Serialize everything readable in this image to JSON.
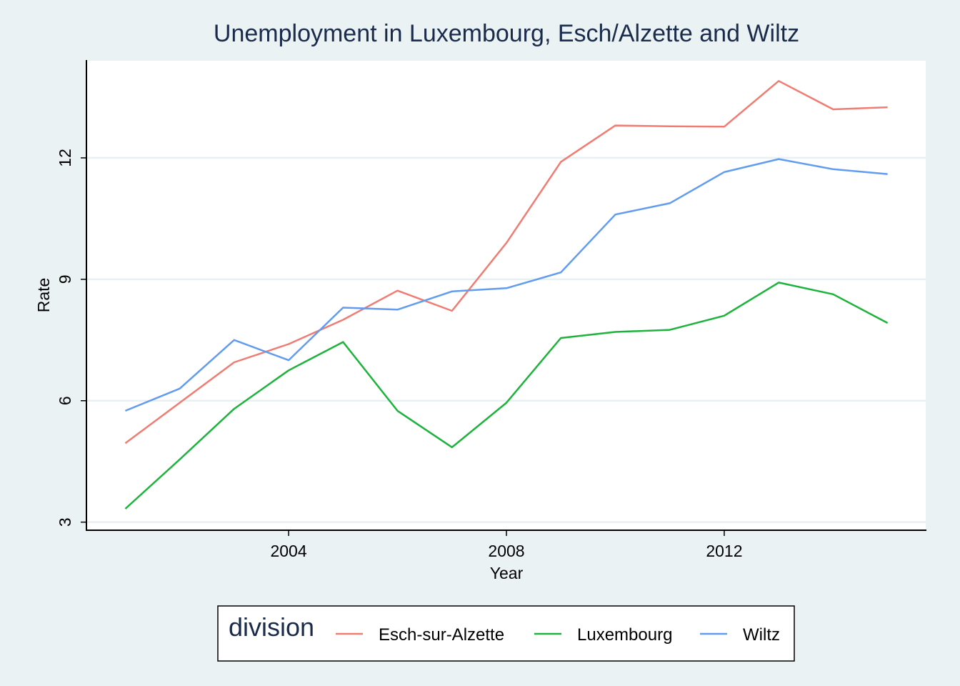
{
  "chart_data": {
    "type": "line",
    "title": "Unemployment in Luxembourg, Esch/Alzette and Wiltz",
    "xlabel": "Year",
    "ylabel": "Rate",
    "xlim": [
      2000.3,
      2015.7
    ],
    "ylim": [
      2.8,
      14.4
    ],
    "xticks": [
      2004,
      2008,
      2012
    ],
    "xtick_labels": [
      "2004",
      "2008",
      "2012"
    ],
    "yticks": [
      3,
      6,
      9,
      12
    ],
    "ytick_labels": [
      "3",
      "6",
      "9",
      "12"
    ],
    "grid": "horizontal",
    "legend": {
      "title": "division",
      "placement": "bottom"
    },
    "x": [
      2001,
      2002,
      2003,
      2004,
      2005,
      2006,
      2007,
      2008,
      2009,
      2010,
      2011,
      2012,
      2013,
      2014,
      2015
    ],
    "series": [
      {
        "name": "Esch-sur-Alzette",
        "color": "#f07c73",
        "values": [
          4.95,
          5.95,
          6.95,
          7.4,
          8.0,
          8.72,
          8.22,
          9.9,
          11.9,
          12.8,
          12.78,
          12.77,
          13.9,
          13.2,
          13.25
        ]
      },
      {
        "name": "Luxembourg",
        "color": "#1db33c",
        "values": [
          3.33,
          4.55,
          5.8,
          6.75,
          7.45,
          5.75,
          4.85,
          5.95,
          7.55,
          7.7,
          7.75,
          8.1,
          8.92,
          8.63,
          7.92
        ]
      },
      {
        "name": "Wiltz",
        "color": "#619cf0",
        "values": [
          5.75,
          6.3,
          7.5,
          7.0,
          8.3,
          8.25,
          8.7,
          8.78,
          9.17,
          10.6,
          10.88,
          11.65,
          11.97,
          11.72,
          11.6
        ]
      }
    ]
  }
}
